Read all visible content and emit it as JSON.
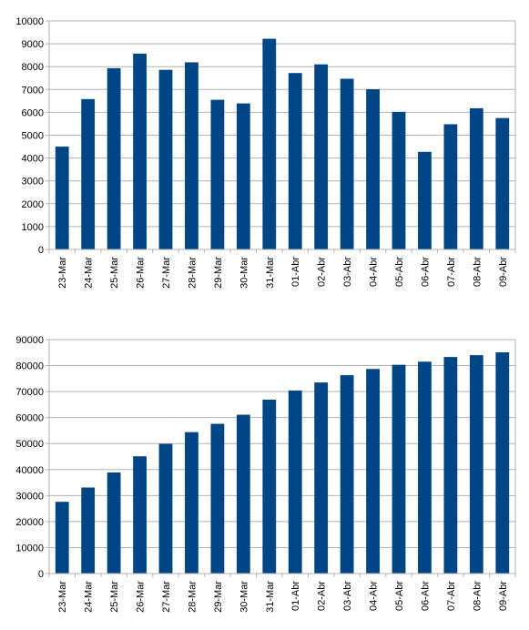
{
  "chart_data": [
    {
      "type": "bar",
      "categories": [
        "23-Mar",
        "24-Mar",
        "25-Mar",
        "26-Mar",
        "27-Mar",
        "28-Mar",
        "29-Mar",
        "30-Mar",
        "31-Mar",
        "01-Abr",
        "02-Abr",
        "03-Abr",
        "04-Abr",
        "05-Abr",
        "06-Abr",
        "07-Abr",
        "08-Abr",
        "09-Abr"
      ],
      "values": [
        4500,
        6580,
        7930,
        8570,
        7860,
        8190,
        6550,
        6390,
        9220,
        7720,
        8100,
        7470,
        7010,
        6020,
        4270,
        5480,
        6180,
        5750
      ],
      "title": "",
      "xlabel": "",
      "ylabel": "",
      "ylim": [
        0,
        10000
      ],
      "yticks": [
        0,
        1000,
        2000,
        3000,
        4000,
        5000,
        6000,
        7000,
        8000,
        9000,
        10000
      ],
      "grid": true,
      "bar_color": "#004586"
    },
    {
      "type": "bar",
      "categories": [
        "23-Mar",
        "24-Mar",
        "25-Mar",
        "26-Mar",
        "27-Mar",
        "28-Mar",
        "29-Mar",
        "30-Mar",
        "31-Mar",
        "01-Abr",
        "02-Abr",
        "03-Abr",
        "04-Abr",
        "05-Abr",
        "06-Abr",
        "07-Abr",
        "08-Abr",
        "09-Abr"
      ],
      "values": [
        27600,
        33100,
        38900,
        45100,
        49900,
        54400,
        57600,
        61100,
        66900,
        70400,
        73500,
        76300,
        78700,
        80300,
        81500,
        83300,
        84000,
        85100
      ],
      "title": "",
      "xlabel": "",
      "ylabel": "",
      "ylim": [
        0,
        90000
      ],
      "yticks": [
        0,
        10000,
        20000,
        30000,
        40000,
        50000,
        60000,
        70000,
        80000,
        90000
      ],
      "grid": true,
      "bar_color": "#004586"
    }
  ]
}
